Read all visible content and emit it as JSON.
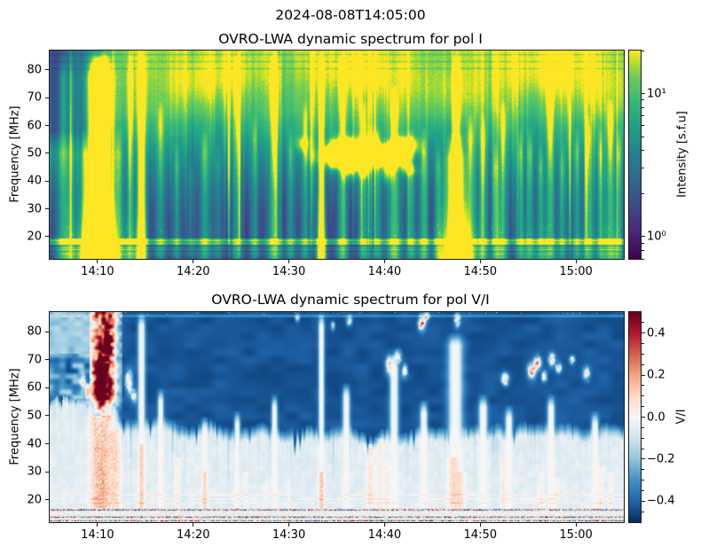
{
  "suptitle": "2024-08-08T14:05:00",
  "chart_data": [
    {
      "type": "heatmap",
      "title": "OVRO-LWA dynamic spectrum for pol I",
      "ylabel": "Frequency [MHz]",
      "x_tick_labels": [
        "14:10",
        "14:20",
        "14:30",
        "14:40",
        "14:50",
        "15:00"
      ],
      "x_tick_minutes_after_1400": [
        10,
        20,
        30,
        40,
        50,
        60
      ],
      "y_tick_labels": [
        "20",
        "30",
        "40",
        "50",
        "60",
        "70",
        "80"
      ],
      "y_ticks_mhz": [
        20,
        30,
        40,
        50,
        60,
        70,
        80
      ],
      "time_range": [
        "14:05",
        "15:05"
      ],
      "time_range_minutes_after_1400": [
        5,
        65
      ],
      "freq_range_mhz": [
        12,
        87
      ],
      "grid": false,
      "colorbar": {
        "label": "Intensity [s.f.u]",
        "scale": "log",
        "colormap": "viridis",
        "range_sfu": [
          0.7,
          20
        ],
        "major_ticks": [
          {
            "value": 10,
            "label": "10¹"
          },
          {
            "value": 1,
            "label": "10⁰"
          }
        ],
        "minor_tick_values": [
          0.7,
          0.8,
          0.9,
          2,
          3,
          4,
          5,
          6,
          7,
          8,
          9,
          20
        ]
      },
      "features": {
        "background_profile_freq_value": [
          [
            12,
            0.17
          ],
          [
            17,
            0.17
          ],
          [
            20,
            0.18
          ],
          [
            26,
            0.21
          ],
          [
            30,
            0.25
          ],
          [
            38,
            0.34
          ],
          [
            45,
            0.45
          ],
          [
            55,
            0.62
          ],
          [
            65,
            0.78
          ],
          [
            75,
            0.84
          ],
          [
            82,
            0.88
          ],
          [
            87,
            0.9
          ]
        ],
        "quiet_top_left": {
          "until_minute": 13,
          "above_mhz": 50,
          "level": 0.22
        },
        "bursts_t_w_amp_ftop": [
          [
            6.4,
            0.3,
            0.35,
            87
          ],
          [
            7.3,
            0.2,
            0.25,
            87
          ],
          [
            8.6,
            0.2,
            0.3,
            60
          ],
          [
            9.8,
            0.45,
            1.0,
            87
          ],
          [
            10.7,
            0.35,
            0.95,
            87
          ],
          [
            10.2,
            1.1,
            0.4,
            87
          ],
          [
            12.2,
            0.25,
            0.3,
            60
          ],
          [
            13.4,
            0.2,
            0.35,
            87
          ],
          [
            14.6,
            0.22,
            0.9,
            87
          ],
          [
            16.6,
            0.25,
            0.3,
            70
          ],
          [
            18.3,
            0.2,
            0.25,
            55
          ],
          [
            19.8,
            0.2,
            0.2,
            50
          ],
          [
            21.2,
            0.25,
            0.35,
            60
          ],
          [
            22.6,
            0.2,
            0.25,
            55
          ],
          [
            24.6,
            0.22,
            0.35,
            87
          ],
          [
            26.4,
            0.2,
            0.3,
            65
          ],
          [
            28.5,
            0.3,
            0.45,
            87
          ],
          [
            30.2,
            0.2,
            0.3,
            60
          ],
          [
            31.7,
            0.2,
            0.3,
            70
          ],
          [
            33.4,
            0.18,
            1.0,
            87
          ],
          [
            35.6,
            0.25,
            0.45,
            87
          ],
          [
            37.9,
            0.22,
            0.35,
            70
          ],
          [
            39.3,
            0.2,
            0.3,
            60
          ],
          [
            41.0,
            0.28,
            0.5,
            75
          ],
          [
            42.8,
            0.2,
            0.35,
            60
          ],
          [
            44.1,
            0.22,
            0.45,
            60
          ],
          [
            45.6,
            0.2,
            0.35,
            55
          ],
          [
            47.4,
            0.55,
            1.0,
            58
          ],
          [
            47.5,
            0.25,
            0.5,
            87
          ],
          [
            49.0,
            0.25,
            0.4,
            65
          ],
          [
            50.3,
            0.22,
            0.45,
            65
          ],
          [
            51.6,
            0.2,
            0.35,
            55
          ],
          [
            52.4,
            0.22,
            0.4,
            70
          ],
          [
            54.2,
            0.2,
            0.35,
            60
          ],
          [
            55.2,
            0.22,
            0.4,
            60
          ],
          [
            56.3,
            0.2,
            0.35,
            55
          ],
          [
            57.3,
            0.25,
            0.45,
            87
          ],
          [
            58.6,
            0.2,
            0.3,
            55
          ],
          [
            60.1,
            0.2,
            0.35,
            60
          ],
          [
            61.3,
            0.22,
            0.4,
            65
          ],
          [
            62.6,
            0.2,
            0.35,
            60
          ],
          [
            63.6,
            0.25,
            0.45,
            70
          ],
          [
            64.5,
            0.2,
            0.35,
            60
          ]
        ],
        "spider_patch_region": {
          "t_min": 31,
          "t_max": 44,
          "f_min": 33,
          "f_max": 56,
          "count": 42,
          "amp": 0.42
        },
        "top_bright_patches_t_f": [
          [
            20,
            74
          ],
          [
            24,
            79
          ],
          [
            36,
            81
          ],
          [
            39,
            76
          ],
          [
            47,
            72
          ],
          [
            56,
            77
          ],
          [
            63,
            72
          ],
          [
            58,
            84
          ]
        ],
        "bright_band": {
          "f_range": [
            17.1,
            19.4
          ],
          "level": 0.52,
          "lines_f_amp": [
            [
              18.6,
              0.2
            ],
            [
              17.5,
              0.12
            ]
          ]
        },
        "dark_band": {
          "f_range": [
            14.7,
            17.1
          ],
          "level": 0.2,
          "lines_f_amp": [
            [
              16.1,
              0.3
            ],
            [
              15.3,
              0.25
            ]
          ]
        },
        "low_band": {
          "below_f": 14.7,
          "level": 0.2,
          "lines_f_amp": [
            [
              13.9,
              0.35
            ]
          ]
        },
        "rfi_dark_lines_mhz": [
          80.5,
          83.0,
          85.5
        ]
      }
    },
    {
      "type": "heatmap",
      "title": "OVRO-LWA dynamic spectrum for pol V/I",
      "ylabel": "Frequency [MHz]",
      "x_tick_labels": [
        "14:10",
        "14:20",
        "14:30",
        "14:40",
        "14:50",
        "15:00"
      ],
      "x_tick_minutes_after_1400": [
        10,
        20,
        30,
        40,
        50,
        60
      ],
      "y_tick_labels": [
        "20",
        "30",
        "40",
        "50",
        "60",
        "70",
        "80"
      ],
      "y_ticks_mhz": [
        20,
        30,
        40,
        50,
        60,
        70,
        80
      ],
      "time_range": [
        "14:05",
        "15:05"
      ],
      "time_range_minutes_after_1400": [
        5,
        65
      ],
      "freq_range_mhz": [
        12,
        87
      ],
      "grid": false,
      "colorbar": {
        "label": "V/I",
        "scale": "linear",
        "colormap": "RdBu_r",
        "range": [
          -0.5,
          0.5
        ],
        "major_ticks": [
          {
            "value": 0.4,
            "label": "0.4"
          },
          {
            "value": 0.2,
            "label": "0.2"
          },
          {
            "value": 0.0,
            "label": "0.0"
          },
          {
            "value": -0.2,
            "label": "−0.2"
          },
          {
            "value": -0.4,
            "label": "−0.4"
          }
        ],
        "minor_tick_values": [
          0.45,
          0.35,
          0.3,
          0.25,
          0.15,
          0.1,
          0.05,
          -0.05,
          -0.1,
          -0.15,
          -0.25,
          -0.3,
          -0.35,
          -0.45
        ]
      },
      "features": {
        "deep_negative_value": -0.455,
        "negative_boundary_t_f": [
          [
            5,
            57
          ],
          [
            8,
            56
          ],
          [
            10,
            53
          ],
          [
            12,
            50
          ],
          [
            15,
            48
          ],
          [
            20,
            46
          ],
          [
            25,
            44.5
          ],
          [
            30,
            44
          ],
          [
            35,
            43
          ],
          [
            40,
            41.5
          ],
          [
            44,
            44
          ],
          [
            48,
            45
          ],
          [
            52,
            43.5
          ],
          [
            56,
            45
          ],
          [
            60,
            44
          ],
          [
            65,
            44.5
          ]
        ],
        "mottled_left_until_minute": 9.5,
        "red_burst": {
          "t_range": [
            9.2,
            12.6
          ],
          "t_center": 10.7,
          "t_sigma": 1.35,
          "above_f": 48,
          "amp": 0.75
        },
        "red_blobs_t_f_st_sf_amp": [
          [
            10.4,
            63,
            0.5,
            5,
            0.85
          ],
          [
            11.1,
            75,
            0.3,
            3,
            0.7
          ],
          [
            13.3,
            62,
            0.25,
            2.5,
            0.75
          ],
          [
            13.8,
            57,
            0.2,
            1.5,
            0.5
          ],
          [
            8.5,
            62,
            0.2,
            2,
            0.45
          ],
          [
            9.0,
            58,
            0.2,
            2,
            0.5
          ],
          [
            40.6,
            68,
            0.3,
            2,
            0.75
          ],
          [
            41.4,
            71,
            0.25,
            1.5,
            0.6
          ],
          [
            42.1,
            66,
            0.2,
            1.5,
            0.5
          ],
          [
            43.9,
            83,
            0.25,
            1.8,
            0.8
          ],
          [
            44.4,
            85.5,
            0.2,
            1,
            0.6
          ],
          [
            47.6,
            84,
            0.2,
            1.5,
            0.6
          ],
          [
            52.6,
            63,
            0.25,
            1.5,
            0.6
          ],
          [
            55.4,
            66,
            0.3,
            1.8,
            0.7
          ],
          [
            56.0,
            69,
            0.25,
            1.5,
            0.65
          ],
          [
            56.7,
            64,
            0.2,
            1.2,
            0.55
          ],
          [
            57.5,
            70,
            0.25,
            1.5,
            0.6
          ],
          [
            58.2,
            67,
            0.2,
            1.2,
            0.55
          ],
          [
            59.6,
            70,
            0.2,
            1,
            0.5
          ],
          [
            61.1,
            65,
            0.25,
            1.5,
            0.6
          ],
          [
            36.3,
            84,
            0.2,
            1.2,
            0.5
          ],
          [
            34.6,
            82,
            0.15,
            1,
            0.45
          ],
          [
            30.9,
            85,
            0.15,
            1,
            0.45
          ]
        ],
        "white_columns_t_w_ftop": [
          [
            14.6,
            0.25,
            87
          ],
          [
            33.4,
            0.2,
            87
          ],
          [
            47.4,
            0.5,
            80
          ],
          [
            41.0,
            0.3,
            72
          ],
          [
            36.0,
            0.25,
            62
          ],
          [
            44.1,
            0.25,
            56
          ],
          [
            50.3,
            0.3,
            58
          ],
          [
            53.0,
            0.25,
            54
          ],
          [
            57.4,
            0.25,
            58
          ],
          [
            62.0,
            0.25,
            52
          ],
          [
            28.5,
            0.2,
            58
          ],
          [
            24.6,
            0.2,
            52
          ],
          [
            16.6,
            0.2,
            60
          ],
          [
            21.2,
            0.2,
            50
          ]
        ],
        "orange_streaks_t_w_amp_fmax": [
          [
            9.9,
            0.5,
            0.22,
            50
          ],
          [
            10.8,
            0.5,
            0.2,
            50
          ],
          [
            11.9,
            0.4,
            0.18,
            45
          ],
          [
            14.6,
            0.2,
            0.15,
            40
          ],
          [
            18.3,
            0.2,
            0.12,
            35
          ],
          [
            21.2,
            0.2,
            0.12,
            30
          ],
          [
            25.5,
            0.15,
            0.1,
            30
          ],
          [
            27.5,
            0.15,
            0.08,
            26
          ],
          [
            30.0,
            0.15,
            0.08,
            28
          ],
          [
            33.4,
            0.2,
            0.16,
            30
          ],
          [
            38.5,
            0.3,
            0.14,
            40
          ],
          [
            39.5,
            0.3,
            0.12,
            42
          ],
          [
            40.2,
            0.2,
            0.1,
            35
          ],
          [
            47.2,
            0.4,
            0.12,
            35
          ],
          [
            48.0,
            0.3,
            0.1,
            30
          ],
          [
            52.4,
            0.2,
            0.12,
            35
          ],
          [
            56.4,
            0.2,
            0.1,
            30
          ],
          [
            58.0,
            0.15,
            0.1,
            28
          ],
          [
            62.6,
            0.2,
            0.12,
            32
          ],
          [
            63.6,
            0.2,
            0.1,
            30
          ]
        ],
        "rfi_red_lines_f_amp": [
          [
            21.8,
            0.2
          ],
          [
            20.2,
            0.16
          ],
          [
            18.9,
            0.13
          ]
        ],
        "noise_band_below_f": 17.2,
        "noise_band_rows_f": [
          16.4,
          13.8,
          12.5
        ],
        "light_line_f": 85.6
      }
    }
  ]
}
